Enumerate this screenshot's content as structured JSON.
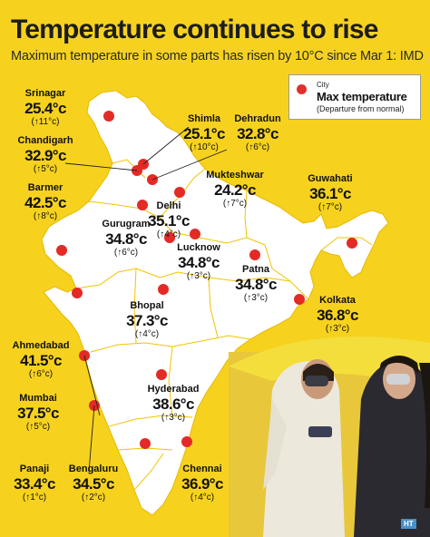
{
  "header": {
    "title": "Temperature continues to rise",
    "subtitle": "Maximum temperature in some parts has risen by 10°C since Mar 1: IMD"
  },
  "legend": {
    "label_city": "City",
    "label_max": "Max temperature",
    "label_dep": "(Departure from normal)",
    "dot_color": "#e32a26"
  },
  "colors": {
    "background": "#f6d21f",
    "map_fill": "#ffffff",
    "state_border": "#f0c400",
    "dot": "#e32a26"
  },
  "cities": [
    {
      "key": "srinagar",
      "name": "Srinagar",
      "temp": "25.4°c",
      "dep": "(↑11°c)"
    },
    {
      "key": "chandigarh",
      "name": "Chandigarh",
      "temp": "32.9°c",
      "dep": "(↑5°c)"
    },
    {
      "key": "barmer",
      "name": "Barmer",
      "temp": "42.5°c",
      "dep": "(↑8°c)"
    },
    {
      "key": "shimla",
      "name": "Shimla",
      "temp": "25.1°c",
      "dep": "(↑10°c)"
    },
    {
      "key": "dehradun",
      "name": "Dehradun",
      "temp": "32.8°c",
      "dep": "(↑6°c)"
    },
    {
      "key": "mukteshwar",
      "name": "Mukteshwar",
      "temp": "24.2°c",
      "dep": "(↑7°c)"
    },
    {
      "key": "delhi",
      "name": "Delhi",
      "temp": "35.1°c",
      "dep": "(↑4°c)"
    },
    {
      "key": "gurugram",
      "name": "Gurugram",
      "temp": "34.8°c",
      "dep": "(↑6°c)"
    },
    {
      "key": "guwahati",
      "name": "Guwahati",
      "temp": "36.1°c",
      "dep": "(↑7°c)"
    },
    {
      "key": "lucknow",
      "name": "Lucknow",
      "temp": "34.8°c",
      "dep": "(↑3°c)"
    },
    {
      "key": "patna",
      "name": "Patna",
      "temp": "34.8°c",
      "dep": "(↑3°c)"
    },
    {
      "key": "bhopal",
      "name": "Bhopal",
      "temp": "37.3°c",
      "dep": "(↑4°c)"
    },
    {
      "key": "kolkata",
      "name": "Kolkata",
      "temp": "36.8°c",
      "dep": "(↑3°c)"
    },
    {
      "key": "ahmedabad",
      "name": "Ahmedabad",
      "temp": "41.5°c",
      "dep": "(↑6°c)"
    },
    {
      "key": "mumbai",
      "name": "Mumbai",
      "temp": "37.5°c",
      "dep": "(↑5°c)"
    },
    {
      "key": "hyderabad",
      "name": "Hyderabad",
      "temp": "38.6°c",
      "dep": "(↑3°c)"
    },
    {
      "key": "panaji",
      "name": "Panaji",
      "temp": "33.4°c",
      "dep": "(↑1°c)"
    },
    {
      "key": "bengaluru",
      "name": "Bengaluru",
      "temp": "34.5°c",
      "dep": "(↑2°c)"
    },
    {
      "key": "chennai",
      "name": "Chennai",
      "temp": "36.9°c",
      "dep": "(↑4°c)"
    }
  ],
  "credit": "HT"
}
